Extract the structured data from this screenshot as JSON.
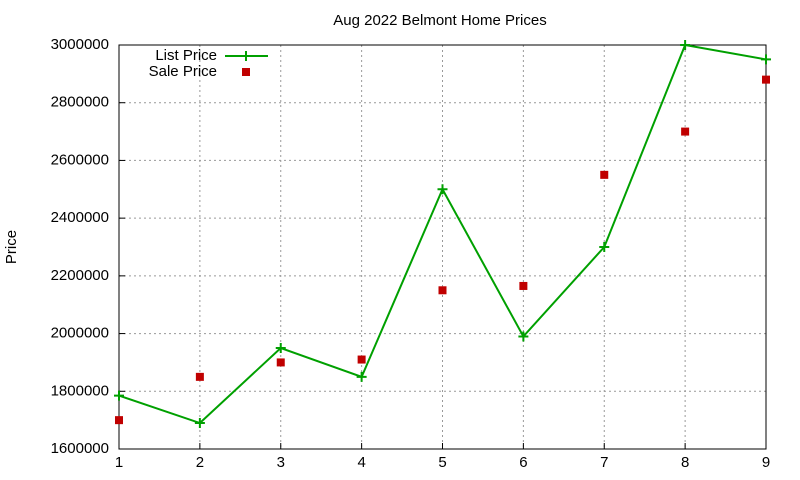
{
  "chart_data": {
    "type": "line",
    "title": "Aug 2022 Belmont Home Prices",
    "y_label": "Price",
    "x": [
      1,
      2,
      3,
      4,
      5,
      6,
      7,
      8,
      9
    ],
    "series": [
      {
        "name": "List Price",
        "color": "#00a000",
        "style": "linespoints",
        "values": [
          1785000,
          1690000,
          1950000,
          1850000,
          2500000,
          1990000,
          2300000,
          3000000,
          2950000
        ]
      },
      {
        "name": "Sale Price",
        "color": "#c00000",
        "style": "points",
        "values": [
          1700000,
          1850000,
          1900000,
          1910000,
          2150000,
          2165000,
          2550000,
          2700000,
          2880000
        ]
      }
    ],
    "xlim": [
      1,
      9
    ],
    "xticks": [
      1,
      2,
      3,
      4,
      5,
      6,
      7,
      8,
      9
    ],
    "ylim": [
      1600000,
      3000000
    ],
    "yticks": [
      1600000,
      1800000,
      2000000,
      2200000,
      2400000,
      2600000,
      2800000,
      3000000
    ],
    "grid": true,
    "legend": "top-left"
  }
}
